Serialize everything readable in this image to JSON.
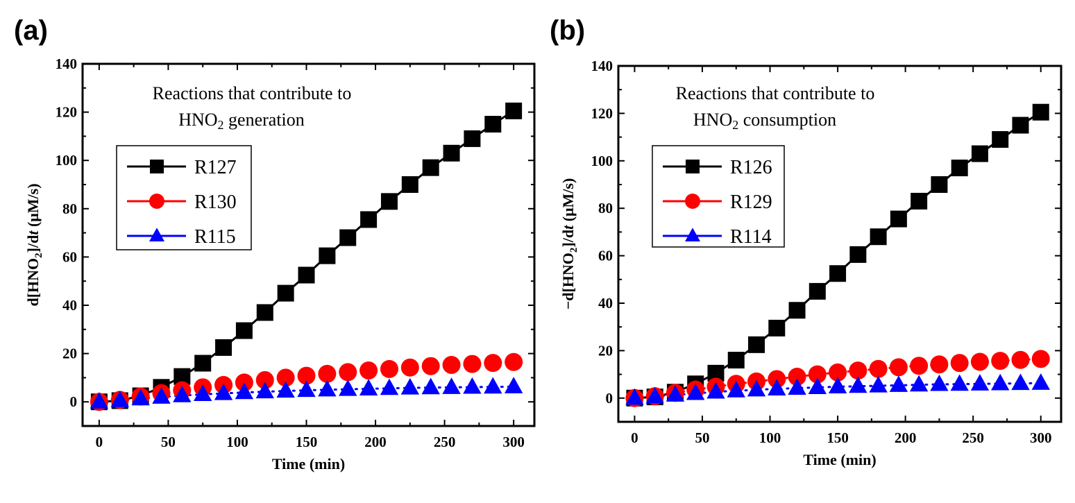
{
  "chart_data": [
    {
      "panel_label": "(a)",
      "type": "line",
      "title": "",
      "annotation_line1": "Reactions that contribute to",
      "annotation_line2_prefix": "HNO",
      "annotation_line2_sub": "2",
      "annotation_line2_suffix": " generation",
      "xlabel": "Time (min)",
      "ylabel_prefix": "d[HNO",
      "ylabel_sub": "2",
      "ylabel_mid": "]/d",
      "ylabel_italic": "t",
      "ylabel_suffix": " (μM/s)",
      "xlim": [
        -12,
        315
      ],
      "ylim": [
        -10,
        140
      ],
      "xticks": [
        0,
        50,
        100,
        150,
        200,
        250,
        300
      ],
      "yticks": [
        0,
        20,
        40,
        60,
        80,
        100,
        120,
        140
      ],
      "grid": false,
      "legend_position": "upper-left",
      "x": [
        0,
        15,
        30,
        45,
        60,
        75,
        90,
        105,
        120,
        135,
        150,
        165,
        180,
        195,
        210,
        225,
        240,
        255,
        270,
        285,
        300
      ],
      "series": [
        {
          "name": "R127",
          "color": "#000000",
          "marker": "square",
          "line": "solid",
          "values": [
            0,
            0.5,
            2.5,
            6,
            10.5,
            16,
            22.5,
            29.5,
            37,
            45,
            52.5,
            60.5,
            68,
            75.5,
            83,
            90,
            97,
            103,
            109,
            115,
            120.5
          ]
        },
        {
          "name": "R130",
          "color": "#ff0000",
          "marker": "circle",
          "line": "dotted",
          "values": [
            0,
            0.8,
            2.2,
            3.6,
            4.8,
            6,
            7,
            8,
            9,
            10,
            10.8,
            11.6,
            12.3,
            13,
            13.6,
            14.2,
            14.8,
            15.3,
            15.7,
            16.1,
            16.5
          ]
        },
        {
          "name": "R115",
          "color": "#0000ff",
          "marker": "triangle",
          "line": "dotted",
          "values": [
            0,
            0.6,
            1.3,
            2,
            2.6,
            3.1,
            3.5,
            3.9,
            4.2,
            4.5,
            4.8,
            5,
            5.2,
            5.4,
            5.6,
            5.8,
            5.9,
            6,
            6.1,
            6.2,
            6.3
          ]
        }
      ]
    },
    {
      "panel_label": "(b)",
      "type": "line",
      "title": "",
      "annotation_line1": "Reactions that contribute to",
      "annotation_line2_prefix": "HNO",
      "annotation_line2_sub": "2",
      "annotation_line2_suffix": " consumption",
      "xlabel": "Time (min)",
      "ylabel_prefix": "−d[HNO",
      "ylabel_sub": "2",
      "ylabel_mid": "]/d",
      "ylabel_italic": "t",
      "ylabel_suffix": " (μM/s)",
      "xlim": [
        -12,
        315
      ],
      "ylim": [
        -10,
        140
      ],
      "xticks": [
        0,
        50,
        100,
        150,
        200,
        250,
        300
      ],
      "yticks": [
        0,
        20,
        40,
        60,
        80,
        100,
        120,
        140
      ],
      "grid": false,
      "legend_position": "upper-left",
      "x": [
        0,
        15,
        30,
        45,
        60,
        75,
        90,
        105,
        120,
        135,
        150,
        165,
        180,
        195,
        210,
        225,
        240,
        255,
        270,
        285,
        300
      ],
      "series": [
        {
          "name": "R126",
          "color": "#000000",
          "marker": "square",
          "line": "solid",
          "values": [
            0,
            0.5,
            2.5,
            6,
            10.5,
            16,
            22.5,
            29.5,
            37,
            45,
            52.5,
            60.5,
            68,
            75.5,
            83,
            90,
            97,
            103,
            109,
            115,
            120.5
          ]
        },
        {
          "name": "R129",
          "color": "#ff0000",
          "marker": "circle",
          "line": "dotted",
          "values": [
            0,
            0.8,
            2.2,
            3.6,
            4.8,
            6,
            7,
            8,
            9,
            10,
            10.8,
            11.6,
            12.3,
            13,
            13.6,
            14.2,
            14.8,
            15.3,
            15.7,
            16.1,
            16.5
          ]
        },
        {
          "name": "R114",
          "color": "#0000ff",
          "marker": "triangle",
          "line": "dotted",
          "values": [
            0,
            0.6,
            1.3,
            2,
            2.6,
            3.1,
            3.5,
            3.9,
            4.2,
            4.5,
            4.8,
            5,
            5.2,
            5.4,
            5.6,
            5.8,
            5.9,
            6,
            6.1,
            6.2,
            6.3
          ]
        }
      ]
    }
  ]
}
